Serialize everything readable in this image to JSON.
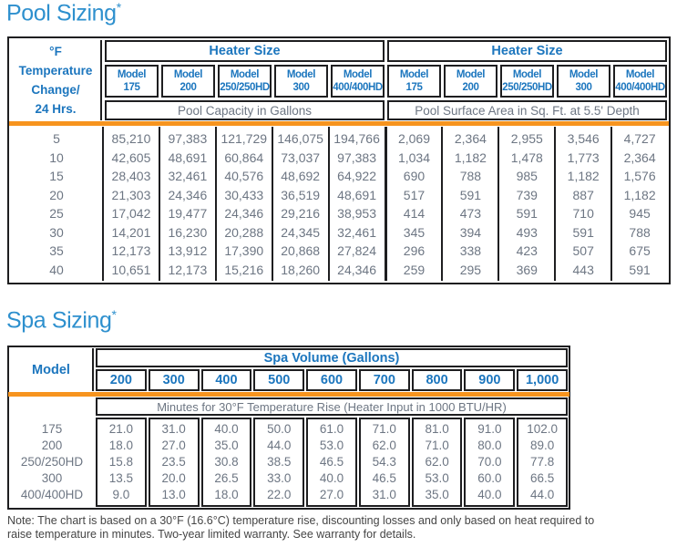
{
  "colors": {
    "title_blue": "#2e90ce",
    "header_blue": "#1c76be",
    "data_gray": "#6d7683",
    "orange": "#f7941e",
    "ink": "#1e1e20",
    "note_gray": "#454545"
  },
  "pool": {
    "title": "Pool Sizing",
    "asterisk": "*",
    "corner_header_lines": [
      "°F",
      "Temperature",
      "Change/",
      "24 Hrs."
    ],
    "model_label": "Model",
    "groups": [
      {
        "title": "Heater Size",
        "models": [
          "175",
          "200",
          "250/250HD",
          "300",
          "400/400HD"
        ],
        "unit": "Pool Capacity in Gallons"
      },
      {
        "title": "Heater Size",
        "models": [
          "175",
          "200",
          "250/250HD",
          "300",
          "400/400HD"
        ],
        "unit": "Pool Surface Area in Sq. Ft. at 5.5' Depth"
      }
    ],
    "rows": [
      {
        "temp": "5",
        "left": [
          "85,210",
          "97,383",
          "121,729",
          "146,075",
          "194,766"
        ],
        "right": [
          "2,069",
          "2,364",
          "2,955",
          "3,546",
          "4,727"
        ]
      },
      {
        "temp": "10",
        "left": [
          "42,605",
          "48,691",
          "60,864",
          "73,037",
          "97,383"
        ],
        "right": [
          "1,034",
          "1,182",
          "1,478",
          "1,773",
          "2,364"
        ]
      },
      {
        "temp": "15",
        "left": [
          "28,403",
          "32,461",
          "40,576",
          "48,692",
          "64,922"
        ],
        "right": [
          "690",
          "788",
          "985",
          "1,182",
          "1,576"
        ]
      },
      {
        "temp": "20",
        "left": [
          "21,303",
          "24,346",
          "30,433",
          "36,519",
          "48,691"
        ],
        "right": [
          "517",
          "591",
          "739",
          "887",
          "1,182"
        ]
      },
      {
        "temp": "25",
        "left": [
          "17,042",
          "19,477",
          "24,346",
          "29,216",
          "38,953"
        ],
        "right": [
          "414",
          "473",
          "591",
          "710",
          "945"
        ]
      },
      {
        "temp": "30",
        "left": [
          "14,201",
          "16,230",
          "20,288",
          "24,345",
          "32,461"
        ],
        "right": [
          "345",
          "394",
          "493",
          "591",
          "788"
        ]
      },
      {
        "temp": "35",
        "left": [
          "12,173",
          "13,912",
          "17,390",
          "20,868",
          "27,824"
        ],
        "right": [
          "296",
          "338",
          "423",
          "507",
          "675"
        ]
      },
      {
        "temp": "40",
        "left": [
          "10,651",
          "12,173",
          "15,216",
          "18,260",
          "24,346"
        ],
        "right": [
          "259",
          "295",
          "369",
          "443",
          "591"
        ]
      }
    ]
  },
  "spa": {
    "title": "Spa Sizing",
    "asterisk": "*",
    "corner_header": "Model",
    "volume_header": "Spa Volume (Gallons)",
    "volumes": [
      "200",
      "300",
      "400",
      "500",
      "600",
      "700",
      "800",
      "900",
      "1,000"
    ],
    "unit": "Minutes for 30°F Temperature Rise (Heater Input in 1000 BTU/HR)",
    "rows": [
      {
        "model": "175",
        "values": [
          "21.0",
          "31.0",
          "40.0",
          "50.0",
          "61.0",
          "71.0",
          "81.0",
          "91.0",
          "102.0"
        ]
      },
      {
        "model": "200",
        "values": [
          "18.0",
          "27.0",
          "35.0",
          "44.0",
          "53.0",
          "62.0",
          "71.0",
          "80.0",
          "89.0"
        ]
      },
      {
        "model": "250/250HD",
        "values": [
          "15.8",
          "23.5",
          "30.8",
          "38.5",
          "46.5",
          "54.3",
          "62.0",
          "70.0",
          "77.8"
        ]
      },
      {
        "model": "300",
        "values": [
          "13.5",
          "20.0",
          "26.5",
          "33.0",
          "40.0",
          "46.5",
          "53.0",
          "60.0",
          "66.5"
        ]
      },
      {
        "model": "400/400HD",
        "values": [
          "9.0",
          "13.0",
          "18.0",
          "22.0",
          "27.0",
          "31.0",
          "35.0",
          "40.0",
          "44.0"
        ]
      }
    ]
  },
  "note": {
    "text": "Note: The chart is based on a 30°F (16.6°C) temperature rise, discounting losses and only based on heat required to raise temperature in minutes. Two-year limited warranty. See warranty for details."
  }
}
